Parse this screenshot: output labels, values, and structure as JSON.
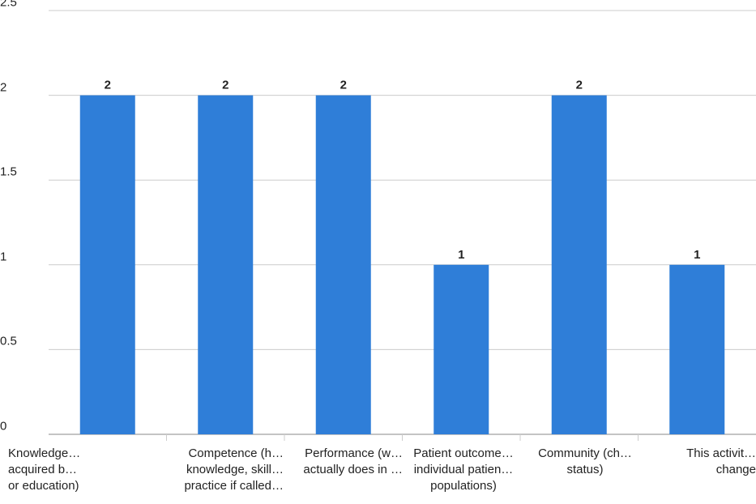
{
  "chart_data": {
    "type": "bar",
    "categories": [
      [
        "Knowledge…",
        "acquired b…",
        "or education)"
      ],
      [
        "Competence (h…",
        "knowledge, skill…",
        "practice if called…"
      ],
      [
        "Performance (w…",
        "actually does in …",
        ""
      ],
      [
        "Patient outcome…",
        "individual patien…",
        "populations)"
      ],
      [
        "Community (ch…",
        "status)",
        ""
      ],
      [
        "This activit…",
        "change",
        ""
      ]
    ],
    "values": [
      2,
      2,
      2,
      1,
      2,
      1
    ],
    "data_labels": [
      "2",
      "2",
      "2",
      "1",
      "2",
      "1"
    ],
    "ylim": [
      0,
      2.5
    ],
    "yticks": [
      "0",
      "0.5",
      "1",
      "1.5",
      "2",
      "2.5"
    ],
    "grid": true,
    "colors": {
      "bar": "#2f7ed8",
      "grid": "#cccccc",
      "axis": "#888888",
      "text": "#222222"
    }
  }
}
